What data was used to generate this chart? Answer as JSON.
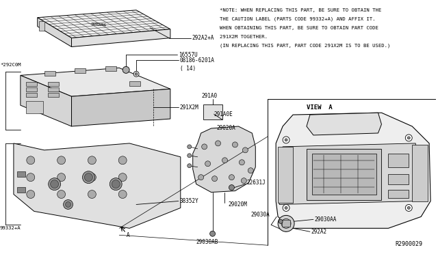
{
  "bg_color": "#ffffff",
  "note_lines": [
    "*NOTE: WHEN REPLACING THIS PART, BE SURE TO OBTAIN THE",
    "THE CAUTION LABEL (PARTS CODE 99332+A) AND AFFIX IT.",
    "WHEN OBTAINING THIS PART, BE SURE TO OBTAIN PART CODE",
    "291X2M TOGETHER.",
    "(IN REPLACING THIS PART, PART CODE 291X2M IS TO BE USED.)"
  ],
  "line_color": "#000000",
  "text_color": "#000000"
}
